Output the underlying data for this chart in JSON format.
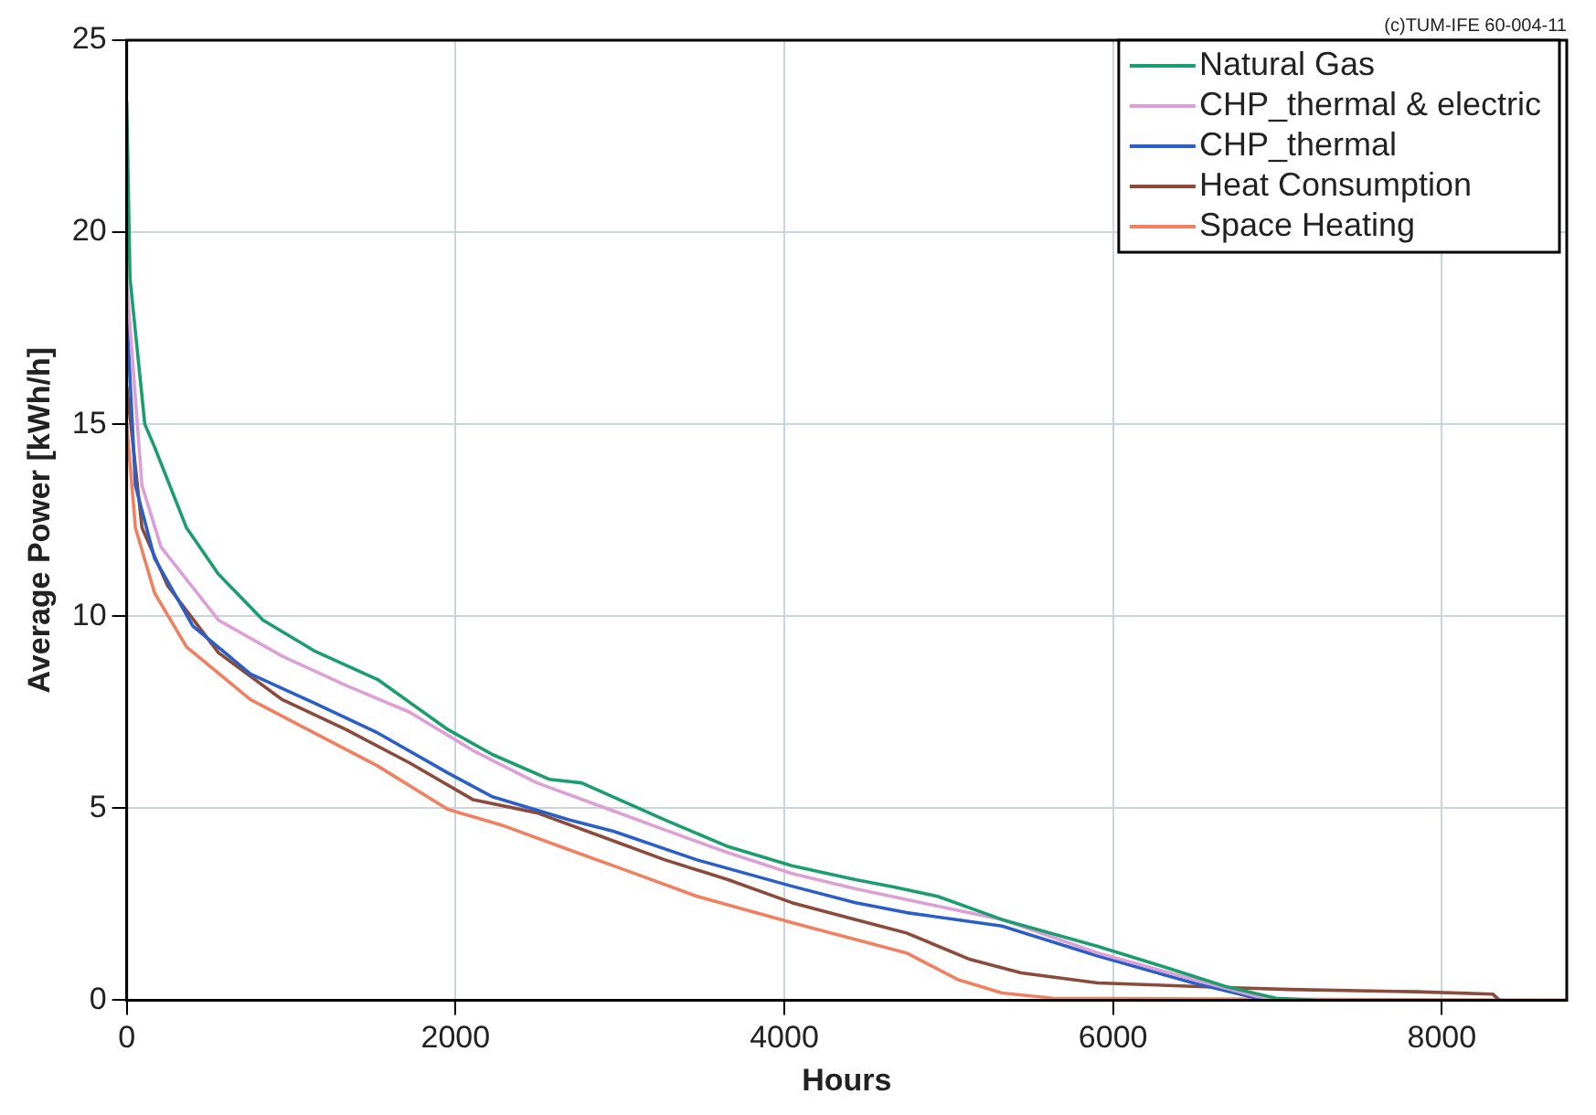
{
  "chart_data": {
    "type": "line",
    "xlabel": "Hours",
    "ylabel": "Average Power [kWh/h]",
    "annotations": [
      "(c)TUM-IFE 60-004-11"
    ],
    "xlim": [
      0,
      8760
    ],
    "ylim": [
      0,
      25
    ],
    "xticks": [
      0,
      2000,
      4000,
      6000,
      8000
    ],
    "yticks": [
      0,
      5,
      10,
      15,
      20,
      25
    ],
    "grid": true,
    "legend": "top right",
    "marker": "none",
    "line_style": "solid",
    "series": [
      {
        "name": "Natural Gas",
        "color": "#1a9e6e",
        "x": [
          0,
          20,
          110,
          170,
          364,
          557,
          829,
          1140,
          1527,
          1953,
          2224,
          2573,
          2767,
          3271,
          3658,
          4046,
          4434,
          4666,
          4937,
          5325,
          5907,
          6294,
          6682,
          6992,
          7225
        ],
        "values": [
          23.4,
          18.8,
          15.0,
          14.4,
          12.3,
          11.1,
          9.9,
          9.1,
          8.35,
          7.05,
          6.4,
          5.75,
          5.66,
          4.7,
          4.0,
          3.5,
          3.14,
          2.95,
          2.7,
          2.1,
          1.4,
          0.89,
          0.36,
          0.05,
          0
        ]
      },
      {
        "name": "CHP_thermal & electric",
        "color": "#dca0d6",
        "x": [
          0,
          93,
          209,
          558,
          945,
          1333,
          1721,
          2108,
          2496,
          2884,
          3271,
          3658,
          4046,
          4434,
          4744,
          5325,
          5907,
          6488,
          6875,
          7070
        ],
        "values": [
          18.7,
          13.4,
          11.8,
          9.9,
          8.96,
          8.2,
          7.5,
          6.5,
          5.66,
          5.05,
          4.44,
          3.84,
          3.3,
          2.9,
          2.62,
          2.1,
          1.23,
          0.54,
          0.1,
          0
        ]
      },
      {
        "name": "CHP_thermal",
        "color": "#2b5fc8",
        "x": [
          0,
          53,
          170,
          403,
          752,
          1140,
          1527,
          1953,
          2224,
          2690,
          2960,
          3465,
          4046,
          4434,
          4744,
          5325,
          5907,
          6488,
          6875,
          7030
        ],
        "values": [
          17.9,
          13.4,
          11.5,
          9.74,
          8.5,
          7.74,
          6.96,
          5.92,
          5.3,
          4.7,
          4.4,
          3.66,
          2.97,
          2.54,
          2.28,
          1.93,
          1.15,
          0.45,
          0.05,
          0
        ]
      },
      {
        "name": "Heat Consumption",
        "color": "#8b4a3a",
        "x": [
          0,
          93,
          248,
          558,
          945,
          1333,
          1721,
          2108,
          2496,
          2884,
          3271,
          3658,
          4046,
          4434,
          4744,
          5131,
          5441,
          5907,
          6682,
          7070,
          7845,
          8310,
          8350
        ],
        "values": [
          16.0,
          12.3,
          10.8,
          9.05,
          7.83,
          7.05,
          6.18,
          5.22,
          4.88,
          4.27,
          3.66,
          3.14,
          2.54,
          2.1,
          1.75,
          1.06,
          0.71,
          0.45,
          0.33,
          0.28,
          0.22,
          0.16,
          0
        ]
      },
      {
        "name": "Space Heating",
        "color": "#f08060",
        "x": [
          0,
          53,
          170,
          364,
          752,
          1140,
          1527,
          1953,
          2302,
          2690,
          3077,
          3465,
          4046,
          4434,
          4744,
          5054,
          5325,
          5635,
          8760
        ],
        "values": [
          15.0,
          12.3,
          10.6,
          9.2,
          7.83,
          6.96,
          6.1,
          4.97,
          4.53,
          3.92,
          3.32,
          2.71,
          2.02,
          1.58,
          1.23,
          0.54,
          0.19,
          0.05,
          0
        ]
      }
    ]
  }
}
